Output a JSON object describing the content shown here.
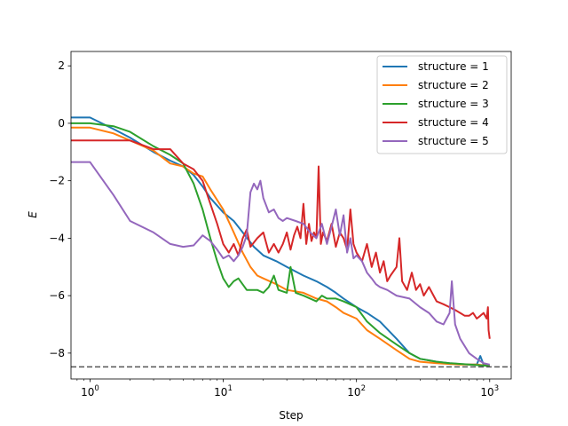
{
  "chart_data": {
    "type": "line",
    "xlabel": "Step",
    "ylabel": "E",
    "x_scale": "log",
    "xlim": [
      0.72,
      1450
    ],
    "ylim": [
      -8.9,
      2.5
    ],
    "x_ticks": [
      {
        "value": 1,
        "base": "10",
        "exp": "0"
      },
      {
        "value": 10,
        "base": "10",
        "exp": "1"
      },
      {
        "value": 100,
        "base": "10",
        "exp": "2"
      },
      {
        "value": 1000,
        "base": "10",
        "exp": "3"
      }
    ],
    "y_ticks": [
      {
        "value": 2,
        "label": "2"
      },
      {
        "value": 0,
        "label": "0"
      },
      {
        "value": -2,
        "label": "−2"
      },
      {
        "value": -4,
        "label": "−4"
      },
      {
        "value": -6,
        "label": "−6"
      },
      {
        "value": -8,
        "label": "−8"
      }
    ],
    "reference_line": {
      "y": -8.48,
      "color": "#555555",
      "style": "dashed"
    },
    "legend_position": "upper right",
    "grid": false,
    "series": [
      {
        "name": "structure = 1",
        "color": "#1f77b4",
        "points": [
          [
            0.72,
            0.2
          ],
          [
            1,
            0.2
          ],
          [
            1.5,
            -0.2
          ],
          [
            2,
            -0.5
          ],
          [
            3,
            -1.0
          ],
          [
            4,
            -1.3
          ],
          [
            5,
            -1.5
          ],
          [
            6,
            -1.8
          ],
          [
            7,
            -2.2
          ],
          [
            8,
            -2.6
          ],
          [
            10,
            -3.1
          ],
          [
            12,
            -3.4
          ],
          [
            14,
            -3.8
          ],
          [
            17,
            -4.3
          ],
          [
            20,
            -4.6
          ],
          [
            25,
            -4.8
          ],
          [
            30,
            -5.0
          ],
          [
            40,
            -5.3
          ],
          [
            50,
            -5.5
          ],
          [
            60,
            -5.7
          ],
          [
            70,
            -5.9
          ],
          [
            80,
            -6.1
          ],
          [
            100,
            -6.4
          ],
          [
            120,
            -6.6
          ],
          [
            150,
            -6.9
          ],
          [
            200,
            -7.5
          ],
          [
            250,
            -8.0
          ],
          [
            300,
            -8.2
          ],
          [
            350,
            -8.25
          ],
          [
            400,
            -8.3
          ],
          [
            500,
            -8.35
          ],
          [
            600,
            -8.38
          ],
          [
            700,
            -8.4
          ],
          [
            800,
            -8.4
          ],
          [
            850,
            -8.1
          ],
          [
            900,
            -8.4
          ],
          [
            1000,
            -8.45
          ]
        ]
      },
      {
        "name": "structure = 2",
        "color": "#ff7f0e",
        "points": [
          [
            0.72,
            -0.15
          ],
          [
            1,
            -0.15
          ],
          [
            1.5,
            -0.35
          ],
          [
            2,
            -0.6
          ],
          [
            3,
            -0.95
          ],
          [
            4,
            -1.4
          ],
          [
            5,
            -1.5
          ],
          [
            6,
            -1.75
          ],
          [
            7,
            -1.85
          ],
          [
            8,
            -2.3
          ],
          [
            10,
            -3.0
          ],
          [
            12,
            -3.8
          ],
          [
            14,
            -4.5
          ],
          [
            16,
            -5.0
          ],
          [
            18,
            -5.3
          ],
          [
            20,
            -5.4
          ],
          [
            25,
            -5.6
          ],
          [
            30,
            -5.8
          ],
          [
            40,
            -5.9
          ],
          [
            50,
            -6.1
          ],
          [
            60,
            -6.2
          ],
          [
            70,
            -6.4
          ],
          [
            80,
            -6.6
          ],
          [
            100,
            -6.8
          ],
          [
            120,
            -7.2
          ],
          [
            150,
            -7.5
          ],
          [
            200,
            -7.9
          ],
          [
            250,
            -8.2
          ],
          [
            300,
            -8.3
          ],
          [
            400,
            -8.35
          ],
          [
            600,
            -8.4
          ],
          [
            800,
            -8.4
          ],
          [
            1000,
            -8.45
          ]
        ]
      },
      {
        "name": "structure = 3",
        "color": "#2ca02c",
        "points": [
          [
            0.72,
            0.0
          ],
          [
            1,
            0.0
          ],
          [
            1.5,
            -0.1
          ],
          [
            2,
            -0.3
          ],
          [
            3,
            -0.8
          ],
          [
            4,
            -1.1
          ],
          [
            5,
            -1.4
          ],
          [
            6,
            -2.1
          ],
          [
            7,
            -3.0
          ],
          [
            8,
            -4.0
          ],
          [
            9,
            -4.8
          ],
          [
            10,
            -5.4
          ],
          [
            11,
            -5.7
          ],
          [
            12,
            -5.5
          ],
          [
            13,
            -5.4
          ],
          [
            15,
            -5.8
          ],
          [
            18,
            -5.8
          ],
          [
            20,
            -5.9
          ],
          [
            22,
            -5.7
          ],
          [
            24,
            -5.3
          ],
          [
            26,
            -5.8
          ],
          [
            30,
            -5.9
          ],
          [
            32,
            -5.0
          ],
          [
            35,
            -5.9
          ],
          [
            40,
            -6.0
          ],
          [
            50,
            -6.2
          ],
          [
            55,
            -6.0
          ],
          [
            60,
            -6.1
          ],
          [
            70,
            -6.1
          ],
          [
            80,
            -6.2
          ],
          [
            100,
            -6.4
          ],
          [
            120,
            -6.9
          ],
          [
            150,
            -7.3
          ],
          [
            200,
            -7.7
          ],
          [
            250,
            -8.0
          ],
          [
            300,
            -8.2
          ],
          [
            400,
            -8.3
          ],
          [
            500,
            -8.35
          ],
          [
            700,
            -8.4
          ],
          [
            1000,
            -8.45
          ]
        ]
      },
      {
        "name": "structure = 4",
        "color": "#d62728",
        "points": [
          [
            0.72,
            -0.6
          ],
          [
            1,
            -0.6
          ],
          [
            2,
            -0.6
          ],
          [
            3,
            -0.9
          ],
          [
            4,
            -0.9
          ],
          [
            5,
            -1.4
          ],
          [
            6,
            -1.6
          ],
          [
            7,
            -2.0
          ],
          [
            8,
            -2.8
          ],
          [
            9,
            -3.5
          ],
          [
            10,
            -4.2
          ],
          [
            11,
            -4.5
          ],
          [
            12,
            -4.2
          ],
          [
            13,
            -4.6
          ],
          [
            14,
            -4.0
          ],
          [
            15,
            -3.7
          ],
          [
            16,
            -4.3
          ],
          [
            18,
            -4.0
          ],
          [
            20,
            -3.8
          ],
          [
            22,
            -4.5
          ],
          [
            24,
            -4.2
          ],
          [
            26,
            -4.5
          ],
          [
            28,
            -4.2
          ],
          [
            30,
            -3.8
          ],
          [
            32,
            -4.4
          ],
          [
            34,
            -3.9
          ],
          [
            36,
            -3.6
          ],
          [
            38,
            -4.0
          ],
          [
            40,
            -2.8
          ],
          [
            42,
            -4.2
          ],
          [
            44,
            -3.5
          ],
          [
            46,
            -4.1
          ],
          [
            48,
            -3.8
          ],
          [
            50,
            -4.0
          ],
          [
            52,
            -1.5
          ],
          [
            54,
            -4.2
          ],
          [
            56,
            -3.8
          ],
          [
            60,
            -4.1
          ],
          [
            65,
            -3.5
          ],
          [
            70,
            -4.3
          ],
          [
            75,
            -3.8
          ],
          [
            80,
            -4.0
          ],
          [
            85,
            -4.4
          ],
          [
            90,
            -3.0
          ],
          [
            95,
            -4.2
          ],
          [
            100,
            -4.5
          ],
          [
            110,
            -4.8
          ],
          [
            120,
            -4.2
          ],
          [
            130,
            -5.0
          ],
          [
            140,
            -4.5
          ],
          [
            150,
            -5.2
          ],
          [
            160,
            -4.8
          ],
          [
            170,
            -5.5
          ],
          [
            180,
            -5.3
          ],
          [
            200,
            -5.0
          ],
          [
            210,
            -4.0
          ],
          [
            220,
            -5.5
          ],
          [
            240,
            -5.8
          ],
          [
            260,
            -5.2
          ],
          [
            280,
            -5.8
          ],
          [
            300,
            -5.6
          ],
          [
            320,
            -6.0
          ],
          [
            350,
            -5.7
          ],
          [
            400,
            -6.2
          ],
          [
            450,
            -6.3
          ],
          [
            500,
            -6.4
          ],
          [
            550,
            -6.5
          ],
          [
            600,
            -6.6
          ],
          [
            650,
            -6.7
          ],
          [
            700,
            -6.7
          ],
          [
            750,
            -6.6
          ],
          [
            800,
            -6.8
          ],
          [
            850,
            -6.7
          ],
          [
            900,
            -6.6
          ],
          [
            950,
            -6.8
          ],
          [
            970,
            -6.4
          ],
          [
            980,
            -7.2
          ],
          [
            1000,
            -7.5
          ]
        ]
      },
      {
        "name": "structure = 5",
        "color": "#9467bd",
        "points": [
          [
            0.72,
            -1.35
          ],
          [
            1,
            -1.35
          ],
          [
            1.5,
            -2.5
          ],
          [
            2,
            -3.4
          ],
          [
            3,
            -3.8
          ],
          [
            4,
            -4.2
          ],
          [
            5,
            -4.3
          ],
          [
            6,
            -4.25
          ],
          [
            7,
            -3.9
          ],
          [
            8,
            -4.1
          ],
          [
            9,
            -4.4
          ],
          [
            10,
            -4.7
          ],
          [
            11,
            -4.6
          ],
          [
            12,
            -4.8
          ],
          [
            13,
            -4.6
          ],
          [
            14,
            -4.3
          ],
          [
            15,
            -3.9
          ],
          [
            16,
            -2.4
          ],
          [
            17,
            -2.1
          ],
          [
            18,
            -2.3
          ],
          [
            19,
            -2.0
          ],
          [
            20,
            -2.6
          ],
          [
            22,
            -3.1
          ],
          [
            24,
            -3.0
          ],
          [
            26,
            -3.3
          ],
          [
            28,
            -3.4
          ],
          [
            30,
            -3.3
          ],
          [
            35,
            -3.4
          ],
          [
            40,
            -3.5
          ],
          [
            45,
            -3.8
          ],
          [
            50,
            -4.0
          ],
          [
            55,
            -3.5
          ],
          [
            60,
            -4.2
          ],
          [
            65,
            -3.6
          ],
          [
            70,
            -3.0
          ],
          [
            75,
            -3.9
          ],
          [
            80,
            -3.2
          ],
          [
            85,
            -4.5
          ],
          [
            90,
            -4.0
          ],
          [
            95,
            -4.7
          ],
          [
            100,
            -4.6
          ],
          [
            110,
            -4.8
          ],
          [
            120,
            -5.2
          ],
          [
            130,
            -5.4
          ],
          [
            140,
            -5.6
          ],
          [
            150,
            -5.7
          ],
          [
            170,
            -5.8
          ],
          [
            200,
            -6.0
          ],
          [
            250,
            -6.1
          ],
          [
            300,
            -6.4
          ],
          [
            350,
            -6.6
          ],
          [
            400,
            -6.9
          ],
          [
            450,
            -7.0
          ],
          [
            500,
            -6.6
          ],
          [
            520,
            -5.5
          ],
          [
            550,
            -7.0
          ],
          [
            600,
            -7.5
          ],
          [
            700,
            -8.0
          ],
          [
            800,
            -8.2
          ],
          [
            900,
            -8.35
          ],
          [
            1000,
            -8.4
          ]
        ]
      }
    ]
  }
}
